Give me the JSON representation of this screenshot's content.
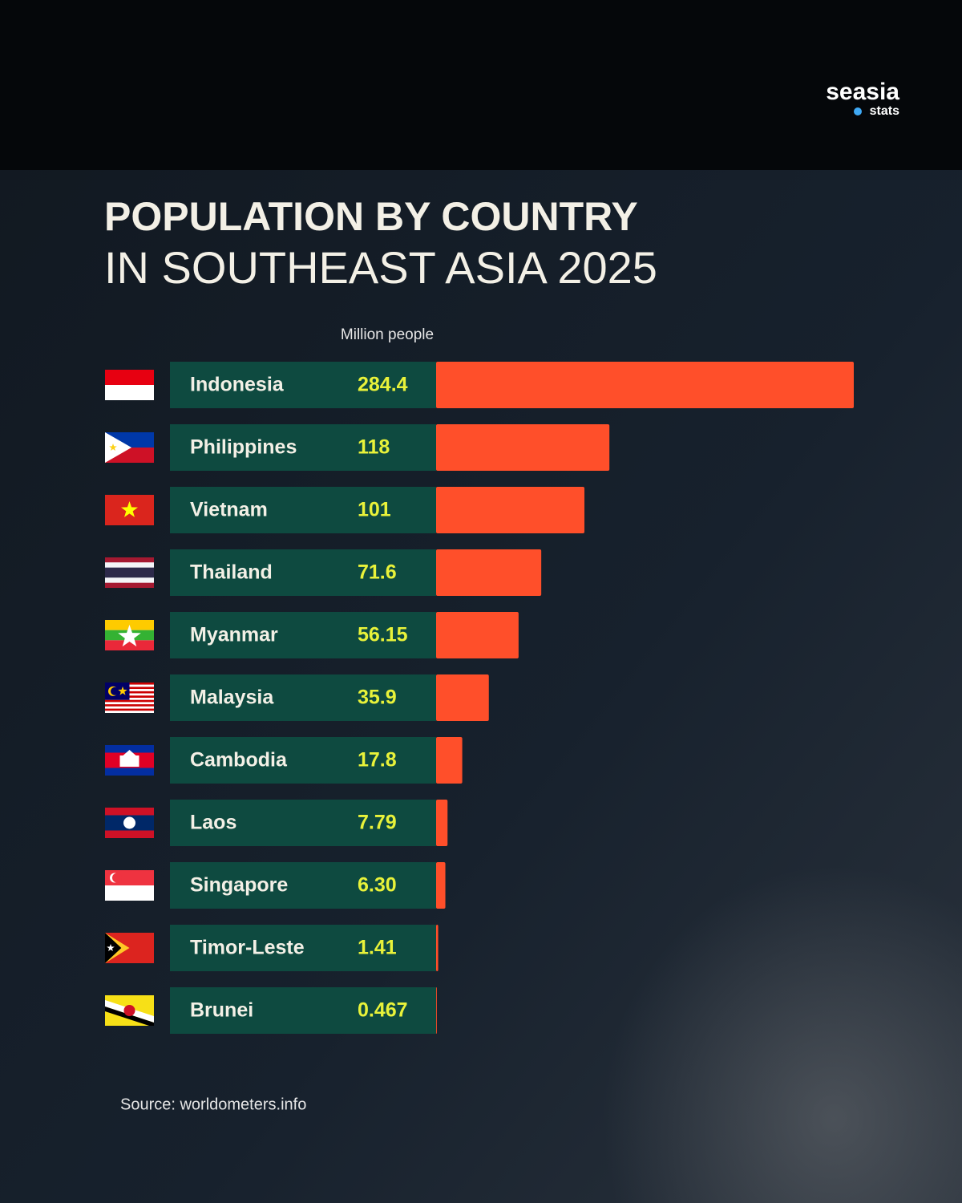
{
  "logo": {
    "name": "seasia",
    "tag": "stats"
  },
  "chart_data": {
    "type": "bar",
    "title": "POPULATION BY COUNTRY",
    "subtitle": "IN SOUTHEAST ASIA 2025",
    "unit_label": "Million people",
    "source": "Source: worldometers.info",
    "categories": [
      "Indonesia",
      "Philippines",
      "Vietnam",
      "Thailand",
      "Myanmar",
      "Malaysia",
      "Cambodia",
      "Laos",
      "Singapore",
      "Timor-Leste",
      "Brunei"
    ],
    "values": [
      284.4,
      118,
      101,
      71.6,
      56.15,
      35.9,
      17.8,
      7.79,
      6.3,
      1.41,
      0.467
    ],
    "value_labels": [
      "284.4",
      "118",
      "101",
      "71.6",
      "56.15",
      "35.9",
      "17.8",
      "7.79",
      "6.30",
      "1.41",
      "0.467"
    ],
    "color": "#ff4f2a"
  }
}
